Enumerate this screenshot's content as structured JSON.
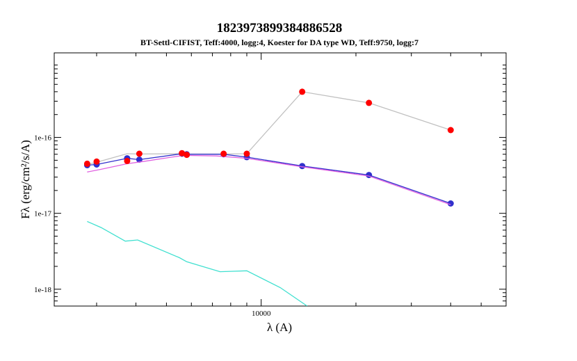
{
  "chart_data": {
    "type": "line",
    "title": "1823973899384886528",
    "subtitle": "BT-Settl-CIFIST, Teff:4000, logg:4, Koester for DA type WD, Teff:9750, logg:7",
    "xlabel": "λ (A)",
    "ylabel": "Fλ (erg/cm²/s/A)",
    "x_scale": "log",
    "y_scale": "log",
    "xlim": [
      2200,
      60000
    ],
    "ylim": [
      6e-19,
      1.3e-15
    ],
    "x_ticks": [
      {
        "value": 10000,
        "label": "10000"
      }
    ],
    "y_ticks": [
      {
        "value": 1e-18,
        "label": "1e-18"
      },
      {
        "value": 1e-17,
        "label": "1e-17"
      },
      {
        "value": 1e-16,
        "label": "1e-16"
      }
    ],
    "grid": false,
    "series": [
      {
        "role": "observed-connector",
        "style": "line",
        "color": "#c0c0c0",
        "x": [
          2800,
          3000,
          3750,
          4100,
          5600,
          5800,
          7600,
          9000,
          13500,
          22000,
          40000
        ],
        "y": [
          4.4e-17,
          4.7e-17,
          6.1e-17,
          6.05e-17,
          6.1e-17,
          6.05e-17,
          6.05e-17,
          6.1e-17,
          4e-16,
          2.85e-16,
          1.25e-16
        ]
      },
      {
        "role": "model-sum",
        "style": "line+markers",
        "color": "#3030cc",
        "x": [
          2800,
          3000,
          3750,
          4100,
          5600,
          5800,
          7600,
          9000,
          13500,
          22000,
          40000
        ],
        "y": [
          4.3e-17,
          4.4e-17,
          5.3e-17,
          5.1e-17,
          6.1e-17,
          6e-17,
          6e-17,
          5.5e-17,
          4.2e-17,
          3.2e-17,
          1.35e-17
        ]
      },
      {
        "role": "model-star",
        "style": "line",
        "color": "#e060e0",
        "x": [
          2800,
          3100,
          3750,
          4200,
          5200,
          5700,
          7200,
          9000,
          13500,
          22000,
          40000
        ],
        "y": [
          3.5e-17,
          3.8e-17,
          4.5e-17,
          4.8e-17,
          5.5e-17,
          5.8e-17,
          5.7e-17,
          5.3e-17,
          4.1e-17,
          3.1e-17,
          1.3e-17
        ]
      },
      {
        "role": "model-wd",
        "style": "line",
        "color": "#40e0d0",
        "x": [
          2800,
          3100,
          3700,
          4050,
          5500,
          5800,
          7400,
          8000,
          9000,
          11500,
          14000
        ],
        "y": [
          7.8e-18,
          6.5e-18,
          4.3e-18,
          4.45e-18,
          2.6e-18,
          2.3e-18,
          1.7e-18,
          1.72e-18,
          1.75e-18,
          1.05e-18,
          6e-19
        ]
      },
      {
        "role": "observed",
        "style": "markers",
        "color": "#ff0000",
        "x": [
          2800,
          3000,
          3750,
          4100,
          5600,
          5800,
          7600,
          9000,
          13500,
          22000,
          40000
        ],
        "y": [
          4.5e-17,
          4.8e-17,
          4.9e-17,
          6.1e-17,
          6.2e-17,
          5.9e-17,
          6.1e-17,
          6.1e-17,
          4e-16,
          2.85e-16,
          1.25e-16
        ]
      }
    ]
  }
}
